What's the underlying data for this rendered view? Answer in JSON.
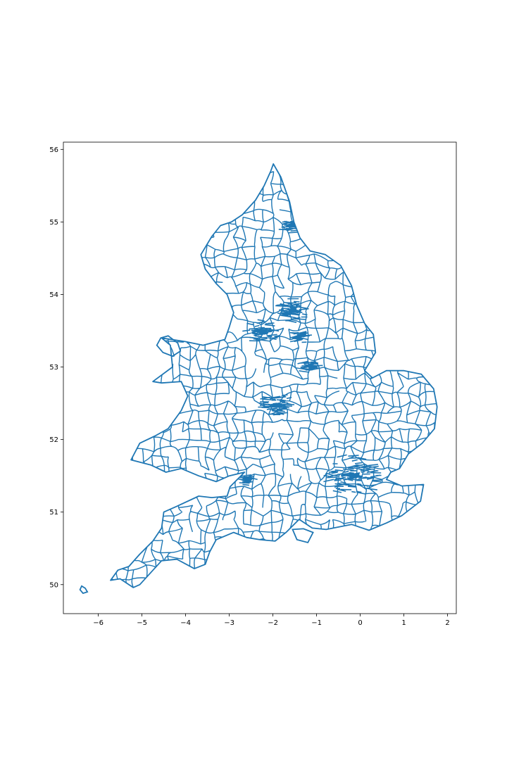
{
  "chart_data": {
    "type": "map",
    "title": "",
    "xlabel": "",
    "ylabel": "",
    "xlim": [
      -6.8,
      2.2
    ],
    "ylim": [
      49.6,
      56.1
    ],
    "x_ticks": [
      -6,
      -5,
      -4,
      -3,
      -2,
      -1,
      0,
      1,
      2
    ],
    "x_tick_labels": [
      "−6",
      "−5",
      "−4",
      "−3",
      "−2",
      "−1",
      "0",
      "1",
      "2"
    ],
    "y_ticks": [
      50,
      51,
      52,
      53,
      54,
      55,
      56
    ],
    "y_tick_labels": [
      "50",
      "51",
      "52",
      "53",
      "54",
      "55",
      "56"
    ],
    "grid": false,
    "legend": "none",
    "boundary_color": "#1f77b4",
    "outline": [
      [
        -1.99,
        55.8
      ],
      [
        -1.82,
        55.62
      ],
      [
        -1.62,
        55.28
      ],
      [
        -1.52,
        55.0
      ],
      [
        -1.38,
        54.78
      ],
      [
        -1.15,
        54.6
      ],
      [
        -0.8,
        54.55
      ],
      [
        -0.45,
        54.4
      ],
      [
        -0.2,
        54.12
      ],
      [
        -0.08,
        53.85
      ],
      [
        0.1,
        53.6
      ],
      [
        0.3,
        53.45
      ],
      [
        0.35,
        53.2
      ],
      [
        0.1,
        52.95
      ],
      [
        0.28,
        52.85
      ],
      [
        0.6,
        52.95
      ],
      [
        1.0,
        52.95
      ],
      [
        1.4,
        52.9
      ],
      [
        1.68,
        52.7
      ],
      [
        1.76,
        52.45
      ],
      [
        1.7,
        52.15
      ],
      [
        1.42,
        51.95
      ],
      [
        1.1,
        51.8
      ],
      [
        0.9,
        51.6
      ],
      [
        0.7,
        51.55
      ],
      [
        0.6,
        51.45
      ],
      [
        0.95,
        51.36
      ],
      [
        1.45,
        51.38
      ],
      [
        1.38,
        51.15
      ],
      [
        0.95,
        50.95
      ],
      [
        0.6,
        50.85
      ],
      [
        0.2,
        50.75
      ],
      [
        -0.2,
        50.83
      ],
      [
        -0.78,
        50.76
      ],
      [
        -1.1,
        50.78
      ],
      [
        -1.4,
        50.9
      ],
      [
        -1.7,
        50.72
      ],
      [
        -1.95,
        50.6
      ],
      [
        -2.3,
        50.62
      ],
      [
        -2.6,
        50.65
      ],
      [
        -2.9,
        50.72
      ],
      [
        -3.3,
        50.62
      ],
      [
        -3.45,
        50.45
      ],
      [
        -3.55,
        50.28
      ],
      [
        -3.8,
        50.22
      ],
      [
        -4.2,
        50.35
      ],
      [
        -4.55,
        50.33
      ],
      [
        -5.05,
        50.0
      ],
      [
        -5.2,
        49.96
      ],
      [
        -5.5,
        50.08
      ],
      [
        -5.72,
        50.06
      ],
      [
        -5.55,
        50.2
      ],
      [
        -5.3,
        50.25
      ],
      [
        -5.05,
        50.42
      ],
      [
        -4.75,
        50.6
      ],
      [
        -4.55,
        50.78
      ],
      [
        -4.5,
        51.0
      ],
      [
        -4.2,
        51.08
      ],
      [
        -3.7,
        51.22
      ],
      [
        -3.4,
        51.2
      ],
      [
        -3.05,
        51.22
      ],
      [
        -2.98,
        51.35
      ],
      [
        -2.65,
        51.55
      ],
      [
        -3.0,
        51.5
      ],
      [
        -3.3,
        51.42
      ],
      [
        -3.7,
        51.5
      ],
      [
        -4.1,
        51.6
      ],
      [
        -4.45,
        51.55
      ],
      [
        -4.8,
        51.65
      ],
      [
        -5.25,
        51.72
      ],
      [
        -5.05,
        51.95
      ],
      [
        -4.7,
        52.05
      ],
      [
        -4.4,
        52.15
      ],
      [
        -4.1,
        52.4
      ],
      [
        -3.95,
        52.6
      ],
      [
        -4.1,
        52.8
      ],
      [
        -4.55,
        52.78
      ],
      [
        -4.75,
        52.8
      ],
      [
        -4.3,
        53.0
      ],
      [
        -4.35,
        53.3
      ],
      [
        -4.55,
        53.4
      ],
      [
        -4.0,
        53.35
      ],
      [
        -3.6,
        53.3
      ],
      [
        -3.1,
        53.38
      ],
      [
        -3.0,
        53.55
      ],
      [
        -2.9,
        53.75
      ],
      [
        -3.05,
        54.0
      ],
      [
        -3.3,
        54.15
      ],
      [
        -3.55,
        54.35
      ],
      [
        -3.65,
        54.55
      ],
      [
        -3.4,
        54.8
      ],
      [
        -3.2,
        54.95
      ],
      [
        -2.95,
        55.0
      ],
      [
        -2.7,
        55.1
      ],
      [
        -2.4,
        55.3
      ],
      [
        -2.2,
        55.5
      ],
      [
        -2.05,
        55.7
      ],
      [
        -1.99,
        55.8
      ]
    ],
    "islands": [
      [
        [
          -4.57,
          53.4
        ],
        [
          -4.4,
          53.43
        ],
        [
          -4.18,
          53.33
        ],
        [
          -4.12,
          53.22
        ],
        [
          -4.3,
          53.15
        ],
        [
          -4.52,
          53.2
        ],
        [
          -4.66,
          53.3
        ],
        [
          -4.57,
          53.4
        ]
      ],
      [
        [
          -1.55,
          50.76
        ],
        [
          -1.3,
          50.77
        ],
        [
          -1.08,
          50.72
        ],
        [
          -1.2,
          50.58
        ],
        [
          -1.45,
          50.62
        ],
        [
          -1.55,
          50.76
        ]
      ],
      [
        [
          -6.38,
          49.98
        ],
        [
          -6.3,
          49.95
        ],
        [
          -6.25,
          49.9
        ],
        [
          -6.35,
          49.88
        ],
        [
          -6.42,
          49.93
        ],
        [
          -6.38,
          49.98
        ]
      ]
    ]
  }
}
